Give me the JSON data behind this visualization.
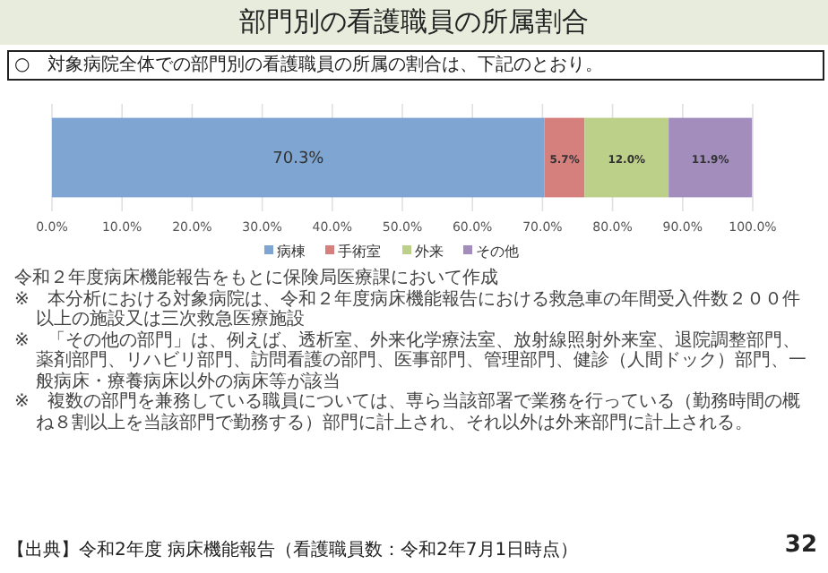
{
  "chart_data": {
    "type": "bar",
    "orientation": "horizontal",
    "stacked": true,
    "title": "部門別の看護職員の所属割合",
    "subtitle": "○　対象病院全体での部門別の看護職員の所属の割合は、下記のとおり。",
    "categories": [
      null
    ],
    "series": [
      {
        "name": "病棟",
        "color": "#7fa6d2",
        "values": [
          70.3
        ],
        "value_labels": [
          "70.3%"
        ]
      },
      {
        "name": "手術室",
        "color": "#d6807e",
        "values": [
          5.7
        ],
        "value_labels": [
          "5.7%"
        ]
      },
      {
        "name": "外来",
        "color": "#bcd08a",
        "values": [
          12.0
        ],
        "value_labels": [
          "12.0%"
        ]
      },
      {
        "name": "その他",
        "color": "#a28dbd",
        "values": [
          11.9
        ],
        "value_labels": [
          "11.9%"
        ]
      }
    ],
    "xlim": [
      0,
      100
    ],
    "xticks": [
      {
        "value": 0,
        "label": "0.0%"
      },
      {
        "value": 10,
        "label": "10.0%"
      },
      {
        "value": 20,
        "label": "20.0%"
      },
      {
        "value": 30,
        "label": "30.0%"
      },
      {
        "value": 40,
        "label": "40.0%"
      },
      {
        "value": 50,
        "label": "50.0%"
      },
      {
        "value": 60,
        "label": "60.0%"
      },
      {
        "value": 70,
        "label": "70.0%"
      },
      {
        "value": 80,
        "label": "80.0%"
      },
      {
        "value": 90,
        "label": "90.0%"
      },
      {
        "value": 100,
        "label": "100.0%"
      }
    ],
    "grid": "x",
    "legend": "bottom",
    "annotations": [
      "令和２年度病床機能報告をもとに保険局医療課において作成",
      "※　本分析における対象病院は、令和２年度病床機能報告における救急車の年間受入件数２００件以上の施設又は三次救急医療施設",
      "※　「その他の部門」は、例えば、透析室、外来化学療法室、放射線照射外来室、退院調整部門、薬剤部門、リハビリ部門、訪問看護の部門、医事部門、管理部門、健診（人間ドック）部門、一般病床・療養病床以外の病床等が該当",
      "※　複数の部門を兼務している職員については、専ら当該部署で業務を行っている（勤務時間の概ね８割以上を当該部門で勤務する）部門に計上され、それ以外は外来部門に計上される。",
      "【出典】令和2年度 病床機能報告（看護職員数：令和2年7月1日時点）",
      "32"
    ]
  }
}
